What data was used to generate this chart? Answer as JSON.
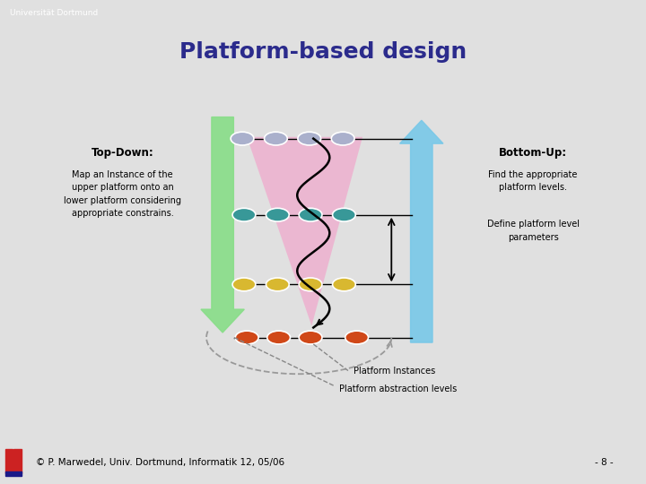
{
  "title": "Platform-based design",
  "title_color": "#2b2b8c",
  "title_fontsize": 18,
  "header_color": "#9090d8",
  "header_gray": "#c8c8c8",
  "footer_line_color": "#000055",
  "slide_bg": "#e0e0e0",
  "white_area_bg": "#ffffff",
  "content_bg": "#d8dcee",
  "content_shadow": "#999999",
  "univ_text": "Universität Dortmund",
  "footer_text": "© P. Marwedel, Univ. Dortmund, Informatik 12, 05/06",
  "page_num": "- 8 -",
  "top_down_title": "Top-Down:",
  "top_down_body": "Map an Instance of the\nupper platform onto an\nlower platform considering\nappropriate constrains.",
  "bottom_up_title": "Bottom-Up:",
  "bottom_up_line1": "Find the appropriate\nplatform levels.",
  "bottom_up_line2": "Define platform level\nparameters",
  "platform_instances_label": "Platform Instances",
  "platform_abstraction_label": "Platform abstraction levels",
  "color_row1": "#aab0cc",
  "color_row2": "#389898",
  "color_row3": "#d8b830",
  "color_row4": "#d04818",
  "green_arrow_color": "#88dd88",
  "blue_arrow_color": "#78c8e8",
  "pink_triangle_color": "#f0aacc",
  "separator_color": "#8888c8",
  "sep_thickness": 0.012
}
